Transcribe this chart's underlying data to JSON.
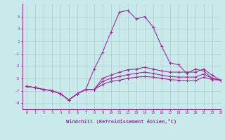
{
  "xlabel": "Windchill (Refroidissement éolien,°C)",
  "bg_color": "#c8eaea",
  "line_color": "#993399",
  "grid_color": "#aaccaa",
  "x_hours": [
    0,
    1,
    2,
    3,
    4,
    5,
    6,
    7,
    8,
    9,
    10,
    11,
    12,
    13,
    14,
    15,
    16,
    17,
    18,
    19,
    20,
    21,
    22,
    23
  ],
  "series": [
    [
      -6.3,
      -6.5,
      -6.8,
      -7.0,
      -7.5,
      -8.5,
      -7.5,
      -6.8,
      -3.5,
      -0.8,
      2.5,
      5.7,
      6.0,
      4.6,
      5.0,
      3.3,
      0.2,
      -2.5,
      -2.8,
      -4.2,
      -3.5,
      -3.8,
      -5.0,
      -5.3
    ],
    [
      -6.3,
      -6.5,
      -6.8,
      -7.0,
      -7.5,
      -8.5,
      -7.5,
      -6.8,
      -6.8,
      -5.0,
      -4.5,
      -4.0,
      -3.6,
      -3.5,
      -3.2,
      -3.5,
      -3.8,
      -4.0,
      -4.0,
      -4.0,
      -4.0,
      -3.5,
      -4.5,
      -5.3
    ],
    [
      -6.3,
      -6.5,
      -6.8,
      -7.0,
      -7.5,
      -8.5,
      -7.5,
      -6.8,
      -6.8,
      -5.5,
      -5.0,
      -4.7,
      -4.4,
      -4.2,
      -4.0,
      -4.2,
      -4.5,
      -4.7,
      -4.8,
      -4.8,
      -4.8,
      -4.3,
      -5.0,
      -5.3
    ],
    [
      -6.3,
      -6.5,
      -6.8,
      -7.0,
      -7.5,
      -8.5,
      -7.5,
      -6.8,
      -6.8,
      -6.0,
      -5.5,
      -5.3,
      -5.0,
      -4.8,
      -4.7,
      -4.8,
      -5.0,
      -5.2,
      -5.3,
      -5.4,
      -5.4,
      -4.8,
      -5.2,
      -5.3
    ]
  ],
  "ylim": [
    -10,
    7
  ],
  "yticks": [
    -9,
    -7,
    -5,
    -3,
    -1,
    1,
    3,
    5
  ],
  "xlim": [
    -0.5,
    23
  ]
}
